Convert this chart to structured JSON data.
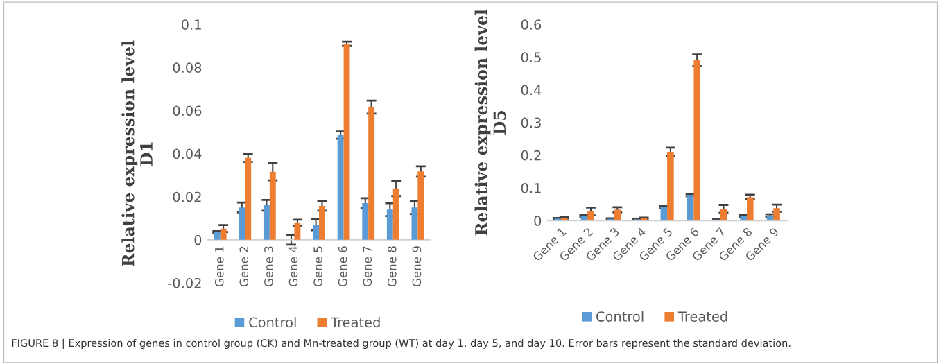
{
  "chart_data": [
    {
      "type": "bar",
      "ylabel": "Relative expression level\nD1",
      "categories": [
        "Gene 1",
        "Gene 2",
        "Gene 3",
        "Gene 4",
        "Gene 5",
        "Gene 6",
        "Gene 7",
        "Gene 8",
        "Gene 9"
      ],
      "series": [
        {
          "name": "Control",
          "color": "#5b9bd5",
          "values": [
            0.0035,
            0.015,
            0.016,
            0.0,
            0.007,
            0.0486,
            0.017,
            0.014,
            0.015
          ],
          "errors": [
            0.0005,
            0.0023,
            0.0025,
            0.0023,
            0.0026,
            0.0017,
            0.0023,
            0.003,
            0.003
          ]
        },
        {
          "name": "Treated",
          "color": "#ed7d31",
          "values": [
            0.0052,
            0.038,
            0.0316,
            0.0078,
            0.0157,
            0.091,
            0.0616,
            0.0238,
            0.0317
          ],
          "errors": [
            0.0016,
            0.0019,
            0.004,
            0.0015,
            0.0022,
            0.001,
            0.003,
            0.0035,
            0.0024
          ]
        }
      ],
      "ylim": [
        -0.02,
        0.1
      ],
      "yticks": [
        -0.02,
        0,
        0.02,
        0.04,
        0.06,
        0.08,
        0.1
      ],
      "grid": false,
      "legend": "bottom",
      "annotations": [
        "FIGURE 8 | Expression of genes in control group (CK) and Mn-treated group (WT) at day 1, day 5, and day 10. Error bars represent the standard deviation."
      ]
    },
    {
      "type": "bar",
      "ylabel": "Relative expression level\nD5",
      "categories": [
        "Gene 1",
        "Gene 2",
        "Gene 3",
        "Gene 4",
        "Gene 5",
        "Gene 6",
        "Gene 7",
        "Gene 8",
        "Gene 9"
      ],
      "series": [
        {
          "name": "Control",
          "color": "#5b9bd5",
          "values": [
            0.006,
            0.014,
            0.005,
            0.004,
            0.041,
            0.078,
            0.003,
            0.015,
            0.015
          ],
          "errors": [
            0.002,
            0.004,
            0.002,
            0.002,
            0.004,
            0.003,
            0.002,
            0.003,
            0.004
          ]
        },
        {
          "name": "Treated",
          "color": "#ed7d31",
          "values": [
            0.008,
            0.028,
            0.033,
            0.007,
            0.21,
            0.49,
            0.036,
            0.072,
            0.038
          ],
          "errors": [
            0.002,
            0.012,
            0.008,
            0.002,
            0.013,
            0.018,
            0.012,
            0.007,
            0.011
          ]
        }
      ],
      "ylim": [
        0,
        0.6
      ],
      "yticks": [
        0,
        0.1,
        0.2,
        0.3,
        0.4,
        0.5,
        0.6
      ],
      "grid": false,
      "legend": "bottom"
    }
  ]
}
